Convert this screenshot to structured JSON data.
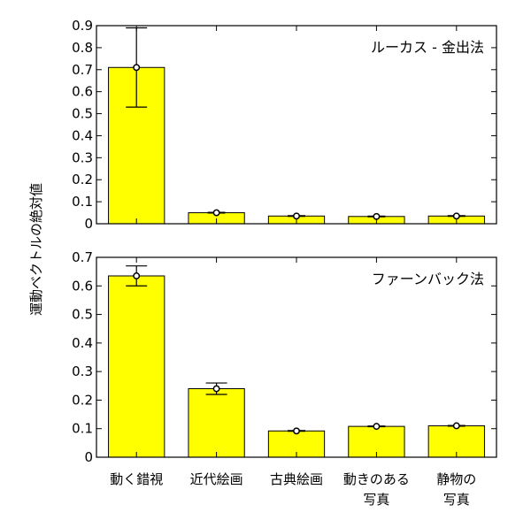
{
  "ylabel": "運動ベクトルの絶対値",
  "categories": [
    {
      "line1": "動く錯視",
      "line2": ""
    },
    {
      "line1": "近代絵画",
      "line2": ""
    },
    {
      "line1": "古典絵画",
      "line2": ""
    },
    {
      "line1": "動きのある",
      "line2": "写真"
    },
    {
      "line1": "静物の",
      "line2": "写真"
    }
  ],
  "colors": {
    "bar": "#ffff00",
    "bar_edge": "#000000",
    "axis": "#000000",
    "marker_fill": "#ffffff"
  },
  "chart_data": [
    {
      "type": "bar",
      "title": "ルーカス - 金出法",
      "categories": [
        "動く錯視",
        "近代絵画",
        "古典絵画",
        "動きのある写真",
        "静物の写真"
      ],
      "values": [
        0.71,
        0.05,
        0.035,
        0.033,
        0.035
      ],
      "markers": [
        0.71,
        0.05,
        0.035,
        0.033,
        0.035
      ],
      "error_low": [
        0.53,
        0.05,
        0.035,
        0.033,
        0.035
      ],
      "error_high": [
        0.89,
        0.05,
        0.035,
        0.033,
        0.035
      ],
      "ylim": [
        0,
        0.9
      ],
      "yticks": [
        "0",
        "0.1",
        "0.2",
        "0.3",
        "0.4",
        "0.5",
        "0.6",
        "0.7",
        "0.8",
        "0.9"
      ],
      "ylabel": "運動ベクトルの絶対値",
      "grid": false
    },
    {
      "type": "bar",
      "title": "ファーンバック法",
      "categories": [
        "動く錯視",
        "近代絵画",
        "古典絵画",
        "動きのある写真",
        "静物の写真"
      ],
      "values": [
        0.635,
        0.24,
        0.092,
        0.108,
        0.11
      ],
      "markers": [
        0.635,
        0.24,
        0.092,
        0.108,
        0.11
      ],
      "error_low": [
        0.6,
        0.22,
        0.092,
        0.108,
        0.11
      ],
      "error_high": [
        0.67,
        0.26,
        0.092,
        0.108,
        0.11
      ],
      "ylim": [
        0,
        0.7
      ],
      "yticks": [
        "0",
        "0.1",
        "0.2",
        "0.3",
        "0.4",
        "0.5",
        "0.6",
        "0.7"
      ],
      "ylabel": "運動ベクトルの絶対値",
      "grid": false
    }
  ]
}
